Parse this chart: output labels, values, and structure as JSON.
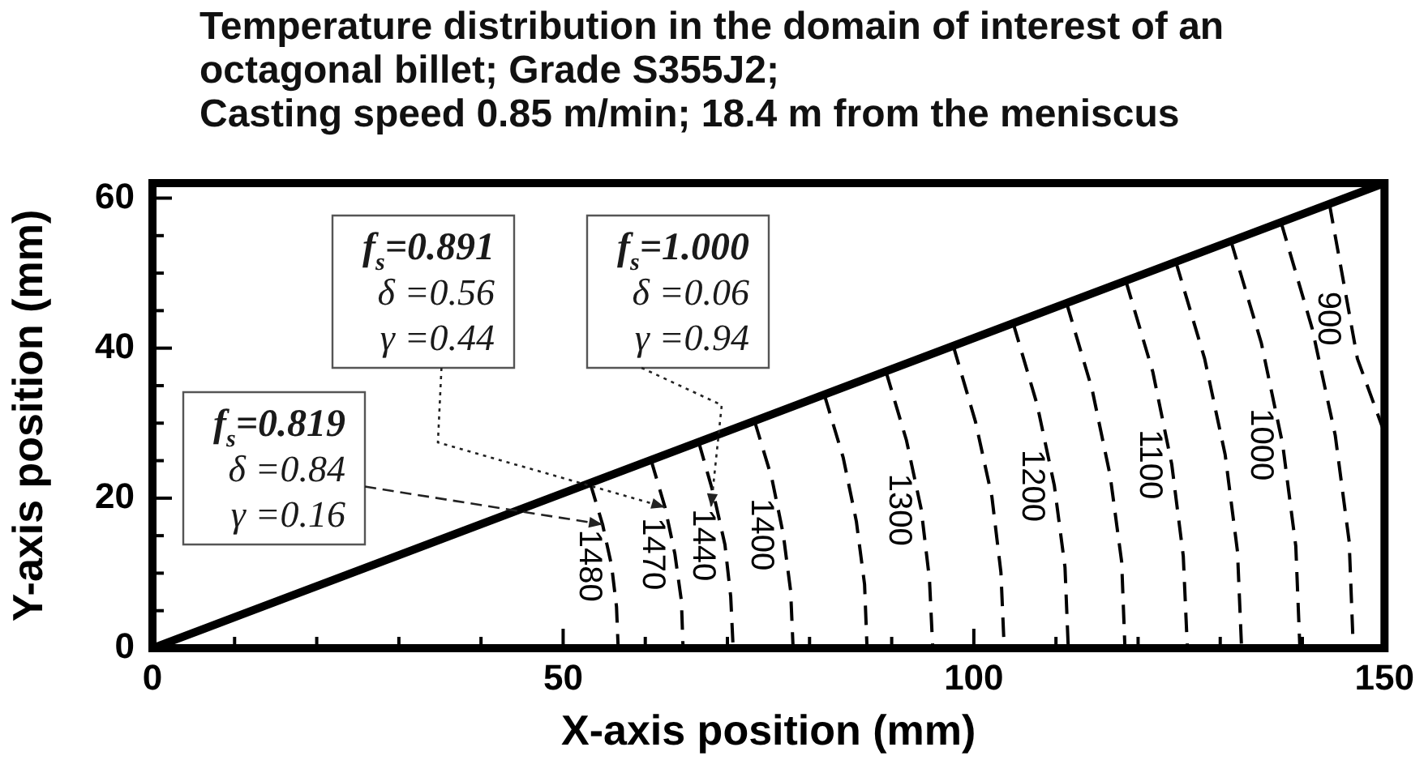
{
  "chart_data": {
    "type": "line",
    "title": "Temperature distribution in the domain of interest of an\noctagonal billet; Grade S355J2;\nCasting speed 0.85 m/min; 18.4 m from the meniscus",
    "xlabel": "X-axis position (mm)",
    "ylabel": "Y-axis position (mm)",
    "xlim": [
      0,
      150
    ],
    "xticks": [
      0,
      {
        "value": 10,
        "label": null
      },
      {
        "value": 20,
        "label": null
      },
      {
        "value": 30,
        "label": null
      },
      {
        "value": 40,
        "label": null
      },
      50,
      {
        "value": 60,
        "label": null
      },
      {
        "value": 70,
        "label": null
      },
      {
        "value": 80,
        "label": null
      },
      {
        "value": 90,
        "label": null
      },
      100,
      {
        "value": 110,
        "label": null
      },
      {
        "value": 120,
        "label": null
      },
      {
        "value": 130,
        "label": null
      },
      {
        "value": 140,
        "label": null
      },
      150
    ],
    "ylim": [
      0,
      62
    ],
    "yticks": [
      0,
      {
        "value": 5,
        "label": null
      },
      {
        "value": 10,
        "label": null
      },
      {
        "value": 15,
        "label": null
      },
      20,
      {
        "value": 25,
        "label": null
      },
      {
        "value": 30,
        "label": null
      },
      {
        "value": 35,
        "label": null
      },
      40,
      {
        "value": 45,
        "label": null
      },
      {
        "value": 50,
        "label": null
      },
      {
        "value": 55,
        "label": null
      },
      60
    ],
    "line_style": "dashed",
    "series": [
      {
        "color": "#000000",
        "line_style": "solid",
        "x": [
          0,
          150
        ],
        "values": [
          0,
          62
        ]
      },
      {
        "name": "1480",
        "color": "#000000",
        "x": [
          53.3,
          54.8,
          55.9,
          56.5,
          56.7
        ],
        "values": [
          22.0,
          16.5,
          11.0,
          5.5,
          0
        ]
      },
      {
        "name": "1470",
        "color": "#000000",
        "x": [
          60.7,
          62.4,
          63.6,
          64.4,
          64.6
        ],
        "values": [
          25.1,
          18.8,
          12.6,
          6.3,
          0
        ]
      },
      {
        "name": "1440",
        "color": "#000000",
        "x": [
          66.5,
          68.3,
          69.7,
          70.4,
          70.7
        ],
        "values": [
          27.5,
          20.6,
          13.8,
          6.9,
          0
        ]
      },
      {
        "name": "1400",
        "color": "#000000",
        "x": [
          73.3,
          75.4,
          76.8,
          77.7,
          78.0
        ],
        "values": [
          30.3,
          22.7,
          15.2,
          7.6,
          0
        ]
      },
      {
        "color": "#000000",
        "x": [
          81.8,
          84.1,
          85.7,
          86.7,
          87.0
        ],
        "values": [
          33.8,
          25.4,
          16.9,
          8.5,
          0
        ]
      },
      {
        "name": "1300",
        "color": "#000000",
        "x": [
          89.3,
          91.8,
          93.6,
          94.6,
          95.0
        ],
        "values": [
          36.9,
          27.7,
          18.5,
          9.2,
          0
        ]
      },
      {
        "color": "#000000",
        "x": [
          97.5,
          100.2,
          102.2,
          103.3,
          103.7
        ],
        "values": [
          40.3,
          30.2,
          20.2,
          10.1,
          0
        ]
      },
      {
        "name": "1200",
        "color": "#000000",
        "x": [
          104.8,
          107.7,
          109.8,
          111.1,
          111.5
        ],
        "values": [
          43.3,
          32.5,
          21.7,
          10.8,
          0
        ]
      },
      {
        "color": "#000000",
        "x": [
          111.3,
          114.4,
          116.6,
          118.0,
          118.4
        ],
        "values": [
          46.0,
          34.5,
          23.0,
          11.5,
          0
        ]
      },
      {
        "name": "1100",
        "color": "#000000",
        "x": [
          118.5,
          121.8,
          124.1,
          125.5,
          126.0
        ],
        "values": [
          49.0,
          36.8,
          24.5,
          12.3,
          0
        ]
      },
      {
        "color": "#000000",
        "x": [
          124.6,
          128.1,
          130.6,
          132.1,
          132.6
        ],
        "values": [
          51.5,
          38.6,
          25.8,
          12.9,
          0
        ]
      },
      {
        "name": "1000",
        "color": "#000000",
        "x": [
          131.3,
          135.0,
          137.6,
          139.2,
          139.7
        ],
        "values": [
          54.3,
          40.7,
          27.2,
          13.6,
          0
        ]
      },
      {
        "color": "#000000",
        "x": [
          137.4,
          141.2,
          144.0,
          145.7,
          146.2
        ],
        "values": [
          56.8,
          42.6,
          28.4,
          14.2,
          0
        ]
      },
      {
        "name": "900",
        "color": "#000000",
        "x": [
          143.3,
          146.7,
          150
        ],
        "values": [
          59.2,
          38.6,
          28.7
        ]
      }
    ],
    "annotations": [
      {
        "text": "f$_{s}$=0.819\nδ =0.84\nγ =0.16",
        "x": 54.8,
        "y": 16.5
      },
      {
        "text": "f$_{s}$=0.891\nδ =0.56\nγ =0.44",
        "x": 62.4,
        "y": 18.8
      },
      {
        "text": "f$_{s}$=1.000\nδ =0.06\nγ =0.94",
        "x": 68.0,
        "y": 18.8
      }
    ]
  }
}
